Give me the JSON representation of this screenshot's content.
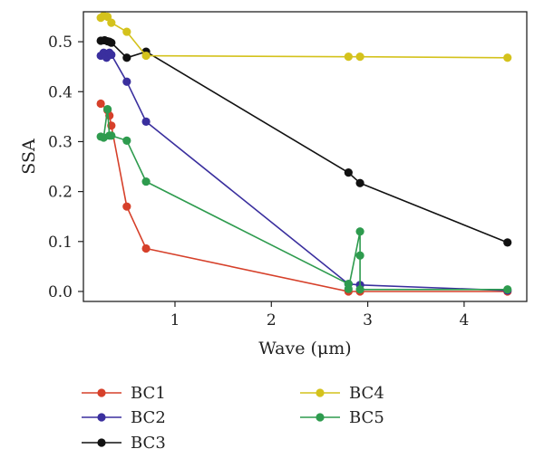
{
  "chart_data": {
    "type": "line",
    "title": "",
    "xlabel": "Wave (μm)",
    "ylabel": "SSA",
    "xlim": [
      0.05,
      4.65
    ],
    "ylim": [
      -0.02,
      0.56
    ],
    "xticks": [
      {
        "value": 1,
        "label": "1"
      },
      {
        "value": 2,
        "label": "2"
      },
      {
        "value": 3,
        "label": "3"
      },
      {
        "value": 4,
        "label": "4"
      }
    ],
    "yticks": [
      {
        "value": 0.0,
        "label": "0.0"
      },
      {
        "value": 0.1,
        "label": "0.1"
      },
      {
        "value": 0.2,
        "label": "0.2"
      },
      {
        "value": 0.3,
        "label": "0.3"
      },
      {
        "value": 0.4,
        "label": "0.4"
      },
      {
        "value": 0.5,
        "label": "0.5"
      }
    ],
    "grid": false,
    "legend_position": "bottom",
    "series": [
      {
        "name": "BC1",
        "color": "#d6402a",
        "x": [
          0.23,
          0.3,
          0.32,
          0.34,
          0.5,
          0.7,
          2.8,
          2.92,
          4.45
        ],
        "y": [
          0.376,
          0.363,
          0.352,
          0.332,
          0.17,
          0.086,
          0.0,
          0.0,
          0.0
        ]
      },
      {
        "name": "BC2",
        "color": "#3a2f9e",
        "x": [
          0.23,
          0.26,
          0.29,
          0.32,
          0.34,
          0.5,
          0.7,
          2.8,
          2.92,
          4.45
        ],
        "y": [
          0.472,
          0.478,
          0.468,
          0.478,
          0.474,
          0.42,
          0.34,
          0.015,
          0.013,
          0.002
        ]
      },
      {
        "name": "BC3",
        "color": "#111111",
        "x": [
          0.23,
          0.27,
          0.3,
          0.32,
          0.34,
          0.5,
          0.7,
          2.8,
          2.92,
          4.45
        ],
        "y": [
          0.502,
          0.503,
          0.501,
          0.5,
          0.498,
          0.468,
          0.48,
          0.238,
          0.217,
          0.098
        ]
      },
      {
        "name": "BC4",
        "color": "#d4c21c",
        "x": [
          0.23,
          0.26,
          0.3,
          0.34,
          0.5,
          0.7,
          2.8,
          2.92,
          4.45
        ],
        "y": [
          0.548,
          0.552,
          0.55,
          0.538,
          0.52,
          0.472,
          0.47,
          0.47,
          0.468
        ]
      },
      {
        "name": "BC5",
        "color": "#2e9b4e",
        "x": [
          0.23,
          0.26,
          0.3,
          0.32,
          0.34,
          0.5,
          0.7,
          2.8,
          2.8,
          2.92,
          2.92,
          2.92,
          4.45
        ],
        "y": [
          0.31,
          0.308,
          0.365,
          0.312,
          0.312,
          0.302,
          0.22,
          0.015,
          0.005,
          0.12,
          0.072,
          0.004,
          0.004
        ]
      }
    ]
  }
}
